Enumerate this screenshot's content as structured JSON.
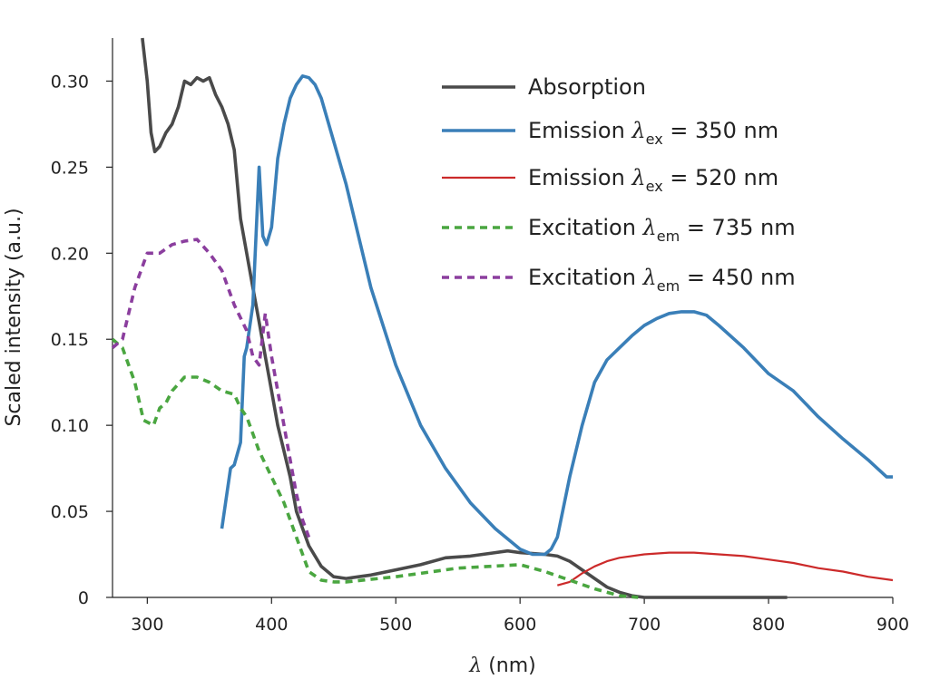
{
  "chart_data": {
    "type": "line",
    "title": "",
    "xlabel_symbol": "λ",
    "xlabel_unit": " (nm)",
    "ylabel": "Scaled intensity (a.u.)",
    "xlim": [
      272,
      900
    ],
    "ylim": [
      0,
      0.325
    ],
    "xticks": [
      300,
      400,
      500,
      600,
      700,
      800,
      900
    ],
    "xtick_labels": [
      "300",
      "400",
      "500",
      "600",
      "700",
      "800",
      "900"
    ],
    "yticks": [
      0,
      0.05,
      0.1,
      0.15,
      0.2,
      0.25,
      0.3
    ],
    "ytick_labels": [
      "0",
      "0.05",
      "0.10",
      "0.15",
      "0.20",
      "0.25",
      "0.30"
    ],
    "grid": false,
    "legend_position": "top-right",
    "series": [
      {
        "legend_main": "Absorption",
        "legend_sym": "",
        "legend_sub": "",
        "legend_tail": "",
        "color": "#4a4a4a",
        "dash": "solid",
        "x": [
          296,
          300,
          303,
          306,
          310,
          315,
          320,
          325,
          330,
          335,
          340,
          345,
          350,
          355,
          360,
          365,
          370,
          375,
          380,
          385,
          390,
          395,
          400,
          405,
          410,
          415,
          420,
          430,
          440,
          450,
          460,
          480,
          500,
          520,
          540,
          560,
          580,
          590,
          600,
          620,
          630,
          640,
          650,
          660,
          670,
          680,
          690,
          700,
          750,
          800,
          815
        ],
        "y": [
          0.325,
          0.3,
          0.27,
          0.259,
          0.262,
          0.27,
          0.275,
          0.285,
          0.3,
          0.298,
          0.302,
          0.3,
          0.302,
          0.292,
          0.285,
          0.275,
          0.26,
          0.22,
          0.2,
          0.18,
          0.16,
          0.14,
          0.12,
          0.1,
          0.085,
          0.07,
          0.05,
          0.03,
          0.018,
          0.012,
          0.011,
          0.013,
          0.016,
          0.019,
          0.023,
          0.024,
          0.026,
          0.027,
          0.026,
          0.025,
          0.024,
          0.021,
          0.016,
          0.011,
          0.006,
          0.003,
          0.001,
          0.0,
          0.0,
          0.0,
          0.0
        ]
      },
      {
        "legend_main": "Emission ",
        "legend_sym": "λ",
        "legend_sub": "ex",
        "legend_tail": " = 350 nm",
        "color": "#3a7fb8",
        "dash": "solid",
        "x": [
          360,
          363,
          367,
          370,
          375,
          378,
          380,
          385,
          390,
          393,
          396,
          400,
          405,
          410,
          415,
          420,
          425,
          430,
          435,
          440,
          450,
          460,
          470,
          480,
          500,
          520,
          540,
          560,
          580,
          600,
          610,
          620,
          625,
          630,
          640,
          650,
          660,
          670,
          680,
          690,
          700,
          710,
          720,
          730,
          740,
          750,
          760,
          780,
          800,
          820,
          840,
          860,
          880,
          895,
          900
        ],
        "y": [
          0.04,
          0.055,
          0.075,
          0.077,
          0.09,
          0.14,
          0.145,
          0.17,
          0.25,
          0.21,
          0.205,
          0.215,
          0.255,
          0.275,
          0.29,
          0.298,
          0.303,
          0.302,
          0.298,
          0.29,
          0.265,
          0.24,
          0.21,
          0.18,
          0.135,
          0.1,
          0.075,
          0.055,
          0.04,
          0.028,
          0.025,
          0.025,
          0.028,
          0.035,
          0.07,
          0.1,
          0.125,
          0.138,
          0.145,
          0.152,
          0.158,
          0.162,
          0.165,
          0.166,
          0.166,
          0.164,
          0.158,
          0.145,
          0.13,
          0.12,
          0.105,
          0.092,
          0.08,
          0.07,
          0.07
        ]
      },
      {
        "legend_main": "Emission ",
        "legend_sym": "λ",
        "legend_sub": "ex",
        "legend_tail": " = 520 nm",
        "color": "#cc2a2a",
        "dash": "thin",
        "x": [
          630,
          640,
          650,
          660,
          670,
          680,
          700,
          720,
          740,
          760,
          780,
          800,
          820,
          840,
          860,
          880,
          900
        ],
        "y": [
          0.007,
          0.009,
          0.014,
          0.018,
          0.021,
          0.023,
          0.025,
          0.026,
          0.026,
          0.025,
          0.024,
          0.022,
          0.02,
          0.017,
          0.015,
          0.012,
          0.01
        ]
      },
      {
        "legend_main": "Excitation ",
        "legend_sym": "λ",
        "legend_sub": "em",
        "legend_tail": " = 735 nm",
        "color": "#4aa640",
        "dash": "dashed",
        "x": [
          272,
          280,
          290,
          297,
          305,
          310,
          315,
          320,
          330,
          340,
          350,
          360,
          370,
          375,
          380,
          390,
          400,
          410,
          420,
          430,
          440,
          450,
          460,
          500,
          550,
          600,
          620,
          640,
          660,
          680,
          695
        ],
        "y": [
          0.15,
          0.145,
          0.125,
          0.103,
          0.1,
          0.11,
          0.113,
          0.12,
          0.128,
          0.128,
          0.125,
          0.12,
          0.118,
          0.11,
          0.105,
          0.085,
          0.07,
          0.055,
          0.035,
          0.015,
          0.01,
          0.009,
          0.009,
          0.012,
          0.017,
          0.019,
          0.015,
          0.01,
          0.005,
          0.001,
          0.0
        ]
      },
      {
        "legend_main": "Excitation ",
        "legend_sym": "λ",
        "legend_sub": "em",
        "legend_tail": " = 450 nm",
        "color": "#8b3e9e",
        "dash": "dashed",
        "x": [
          272,
          280,
          290,
          300,
          310,
          320,
          330,
          340,
          350,
          360,
          370,
          380,
          385,
          390,
          395,
          400,
          405,
          410,
          415,
          420,
          425,
          430
        ],
        "y": [
          0.145,
          0.15,
          0.18,
          0.2,
          0.2,
          0.205,
          0.207,
          0.208,
          0.2,
          0.19,
          0.17,
          0.155,
          0.14,
          0.135,
          0.165,
          0.14,
          0.12,
          0.1,
          0.08,
          0.06,
          0.045,
          0.035
        ]
      }
    ]
  }
}
